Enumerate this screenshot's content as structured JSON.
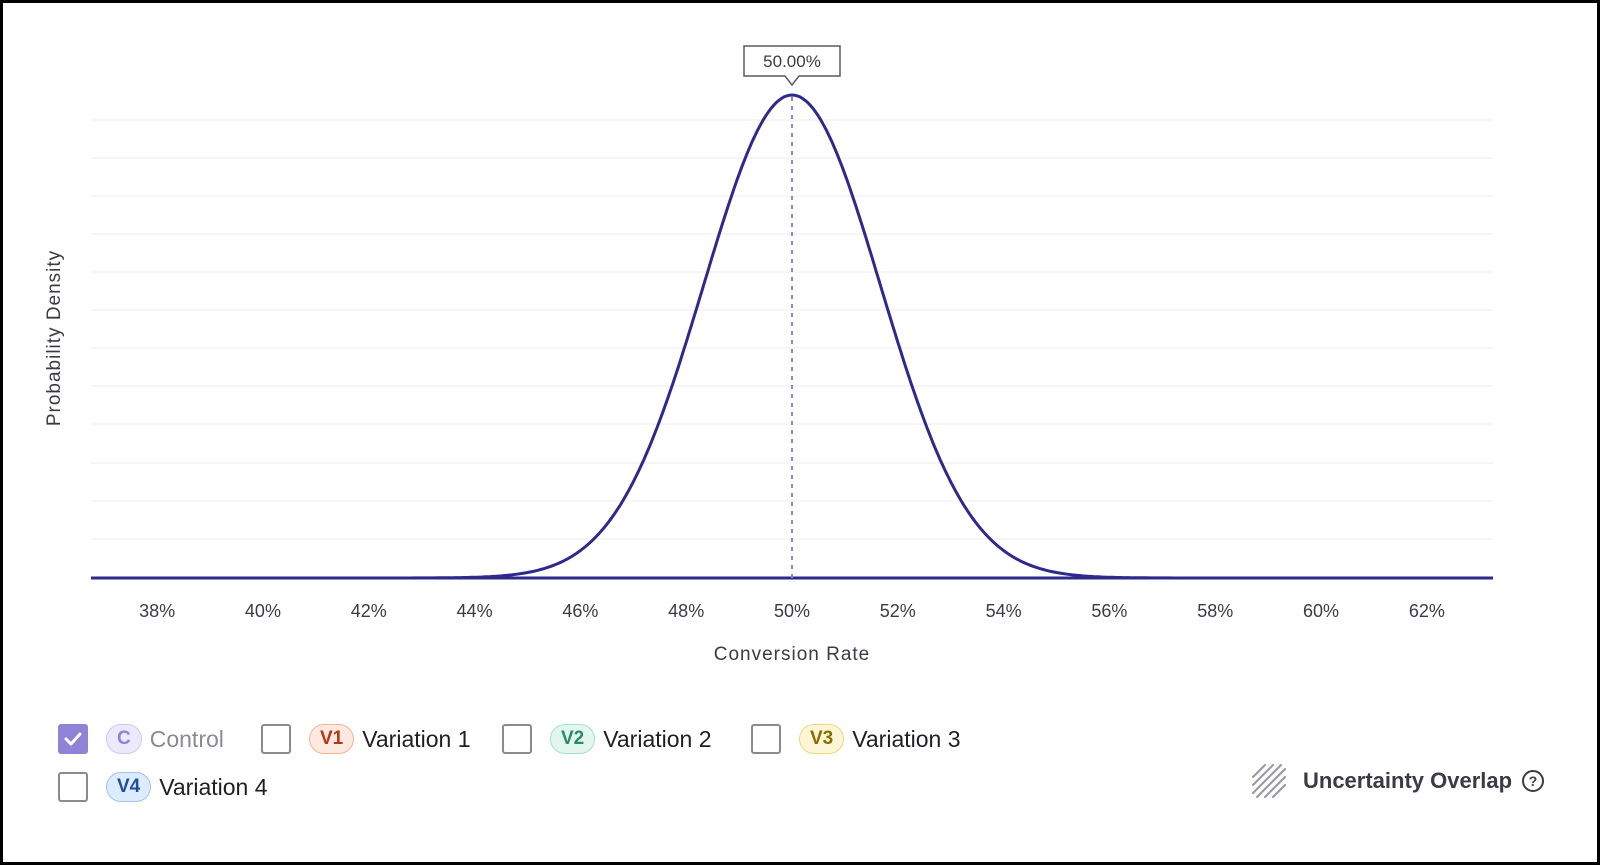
{
  "chart_data": {
    "type": "area",
    "xlabel": "Conversion Rate",
    "ylabel": "Probability Density",
    "xlim": [
      36.75,
      63.25
    ],
    "x_ticks": [
      "38%",
      "40%",
      "42%",
      "44%",
      "46%",
      "48%",
      "50%",
      "52%",
      "54%",
      "56%",
      "58%",
      "60%",
      "62%"
    ],
    "x_tick_values": [
      38,
      40,
      42,
      44,
      46,
      48,
      50,
      52,
      54,
      56,
      58,
      60,
      62
    ],
    "grid": true,
    "series": [
      {
        "name": "Control",
        "distribution": "normal",
        "mean": 50,
        "std": 1.67,
        "color": "#2e2a8c"
      }
    ],
    "marker": {
      "x": 50,
      "label": "50.00%",
      "style": "dashed",
      "color": "#8f83d6"
    }
  },
  "legend": {
    "items": [
      {
        "badge": "C",
        "label": "Control",
        "checked": true,
        "badge_bg": "#ece9fb",
        "badge_border": "#cfc8f2",
        "badge_color": "#8f83d6"
      },
      {
        "badge": "V1",
        "label": "Variation 1",
        "checked": false,
        "badge_bg": "#fde9df",
        "badge_border": "#f2b596",
        "badge_color": "#b03a12"
      },
      {
        "badge": "V2",
        "label": "Variation 2",
        "checked": false,
        "badge_bg": "#e3f6ee",
        "badge_border": "#a6e0c8",
        "badge_color": "#2a8a6a"
      },
      {
        "badge": "V3",
        "label": "Variation 3",
        "checked": false,
        "badge_bg": "#fdf6d6",
        "badge_border": "#ecd77c",
        "badge_color": "#8a6d00"
      },
      {
        "badge": "V4",
        "label": "Variation 4",
        "checked": false,
        "badge_bg": "#dcebfd",
        "badge_border": "#9cc5f2",
        "badge_color": "#1d4f96"
      }
    ]
  },
  "overlap": {
    "label": "Uncertainty Overlap",
    "help": "?"
  }
}
